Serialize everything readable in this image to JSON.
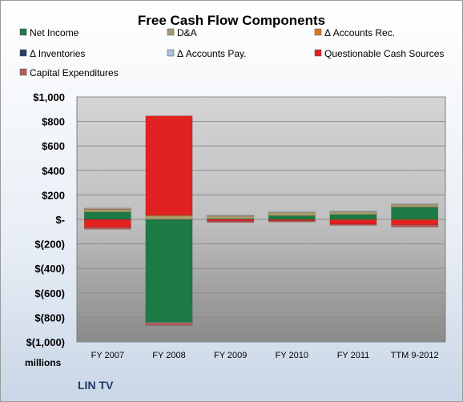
{
  "chart_data": {
    "type": "bar",
    "stacked": true,
    "title": "Free Cash Flow Components",
    "units_label": "millions",
    "company": "LIN TV",
    "categories": [
      "FY 2007",
      "FY 2008",
      "FY 2009",
      "FY 2010",
      "FY 2011",
      "TTM 9-2012"
    ],
    "ylim": [
      -1000,
      1000
    ],
    "yticks": [
      1000,
      800,
      600,
      400,
      200,
      0,
      -200,
      -400,
      -600,
      -800,
      -1000
    ],
    "ytick_labels": [
      "$1,000",
      "$800",
      "$600",
      "$400",
      "$200",
      "$-",
      "$(200)",
      "$(400)",
      "$(600)",
      "$(800)",
      "$(1,000)"
    ],
    "legend_position": "top",
    "series": [
      {
        "name": "Net Income",
        "color": "#1e7a45",
        "values": [
          60,
          -840,
          5,
          30,
          40,
          100
        ]
      },
      {
        "name": "D&A",
        "color": "#a89a6a",
        "values": [
          25,
          30,
          25,
          30,
          25,
          25
        ]
      },
      {
        "name": "Δ Accounts Rec.",
        "color": "#e07820",
        "values": [
          3,
          5,
          3,
          -3,
          -4,
          -5
        ]
      },
      {
        "name": "Δ Inventories",
        "color": "#243f60",
        "values": [
          0,
          0,
          0,
          0,
          0,
          0
        ]
      },
      {
        "name": "Δ Accounts Pay.",
        "color": "#a8c0dc",
        "values": [
          5,
          -5,
          3,
          5,
          5,
          5
        ]
      },
      {
        "name": "Questionable Cash Sources",
        "color": "#e22222",
        "values": [
          -65,
          810,
          -15,
          -8,
          -35,
          -40
        ]
      },
      {
        "name": "Capital Expenditures",
        "color": "#b85c5c",
        "values": [
          -15,
          -20,
          -10,
          -10,
          -10,
          -18
        ]
      }
    ]
  }
}
